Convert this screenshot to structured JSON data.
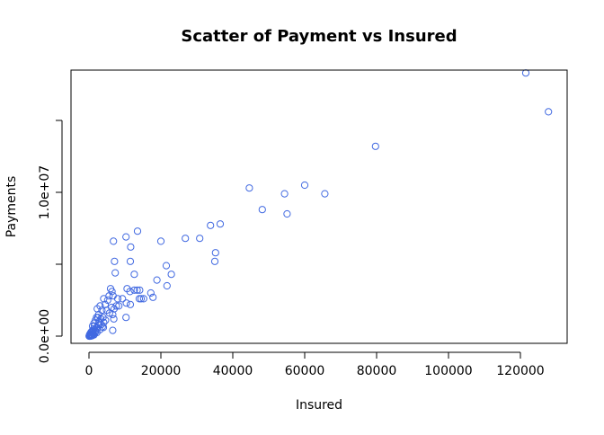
{
  "chart_data": {
    "type": "scatter",
    "title": "Scatter of Payment vs Insured",
    "xlabel": "Insured",
    "ylabel": "Payments",
    "xlim": [
      -5000,
      133000
    ],
    "ylim": [
      -500000,
      18500000
    ],
    "xticks": [
      0,
      20000,
      40000,
      60000,
      80000,
      100000,
      120000
    ],
    "xtick_labels": [
      "0",
      "20000",
      "40000",
      "60000",
      "80000",
      "100000",
      "120000"
    ],
    "yticks": [
      0,
      5000000,
      10000000,
      15000000
    ],
    "ytick_labels": [
      "0.0e+00",
      "",
      "1.0e+07",
      ""
    ],
    "grid": false,
    "point_color": "#4169E1",
    "series": [
      {
        "x": [
          121500,
          127800,
          79700,
          44600,
          54400,
          60000,
          65600,
          48200,
          55100,
          33800,
          36500,
          35200,
          35000,
          26800,
          30800,
          20000,
          13500,
          10300,
          6800,
          11600,
          7100,
          11500,
          7300,
          12600,
          21500,
          22900,
          21700,
          18900,
          10600,
          12600,
          13400,
          14100,
          11400,
          17200,
          17800,
          14500,
          15200,
          14000,
          6000,
          6400,
          5600,
          6700,
          8000,
          9300,
          10400,
          11500,
          8300,
          7600,
          4100,
          5200,
          3100,
          4500,
          2300,
          6300,
          3600,
          4900,
          7000,
          2700,
          6600,
          5700,
          10300,
          3900,
          2500,
          3300,
          1800,
          2100,
          4600,
          6900,
          4100,
          2700,
          1400,
          2800,
          3400,
          1000,
          1500,
          2100,
          3700,
          1300,
          2400,
          4000,
          6600,
          1000,
          3000,
          800,
          1300,
          1900,
          500,
          1100,
          1800,
          2200,
          500,
          900,
          1600,
          200,
          700,
          1200,
          300,
          1000,
          1400,
          100,
          400,
          700,
          900,
          200,
          500,
          300,
          100,
          400,
          200,
          50
        ],
        "y": [
          18300000,
          15600000,
          13200000,
          10300000,
          9900000,
          10500000,
          9900000,
          8800000,
          8500000,
          7700000,
          7800000,
          5800000,
          5200000,
          6800000,
          6800000,
          6600000,
          7300000,
          6900000,
          6600000,
          6200000,
          5200000,
          5200000,
          4400000,
          4300000,
          4900000,
          4300000,
          3500000,
          3900000,
          3300000,
          3200000,
          3200000,
          3200000,
          3100000,
          3000000,
          2700000,
          2600000,
          2600000,
          2600000,
          3300000,
          3100000,
          2800000,
          2800000,
          2600000,
          2600000,
          2300000,
          2200000,
          2100000,
          2100000,
          2600000,
          2500000,
          2100000,
          2200000,
          1900000,
          2000000,
          1800000,
          1800000,
          1900000,
          1500000,
          1500000,
          1600000,
          1300000,
          1300000,
          1300000,
          1200000,
          1100000,
          1300000,
          1100000,
          1200000,
          950000,
          1000000,
          900000,
          800000,
          800000,
          700000,
          700000,
          600000,
          650000,
          500000,
          550000,
          600000,
          400000,
          300000,
          450000,
          350000,
          400000,
          350000,
          250000,
          200000,
          300000,
          250000,
          150000,
          100000,
          200000,
          120000,
          80000,
          150000,
          50000,
          60000,
          90000,
          20000,
          10000,
          40000,
          30000,
          5000,
          8000,
          15000,
          3000,
          2000,
          1000,
          0
        ]
      }
    ]
  }
}
